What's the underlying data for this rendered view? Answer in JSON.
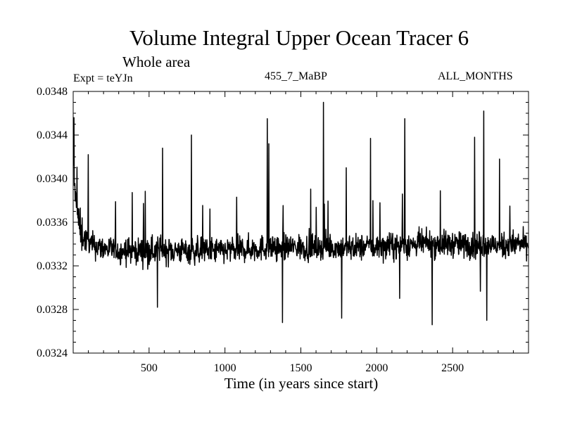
{
  "chart_data": {
    "type": "line",
    "title": "Volume Integral Upper Ocean Tracer 6",
    "subtitle": "Whole area",
    "annotations": {
      "left": "Expt = teYJn",
      "center": "455_7_MaBP",
      "right": "ALL_MONTHS"
    },
    "xlabel": "Time (in years since start)",
    "ylabel": "",
    "xlim": [
      0,
      3000
    ],
    "ylim": [
      0.0324,
      0.0348
    ],
    "x_ticks": [
      500,
      1000,
      1500,
      2000,
      2500
    ],
    "x_tick_labels": [
      "500",
      "1000",
      "1500",
      "2000",
      "2500"
    ],
    "y_ticks": [
      0.0324,
      0.0328,
      0.0332,
      0.0336,
      0.034,
      0.0344,
      0.0348
    ],
    "y_tick_labels": [
      "0.0324",
      "0.0328",
      "0.0332",
      "0.0336",
      "0.0340",
      "0.0344",
      "0.0348"
    ],
    "grid": false,
    "line_color": "#000000",
    "series": [
      {
        "x": [
          1,
          10,
          25,
          50,
          75,
          100,
          150,
          200,
          250,
          300,
          400,
          500,
          600,
          700,
          800,
          900,
          1000,
          1100,
          1200,
          1300,
          1400,
          1500,
          1600,
          1700,
          1800,
          1900,
          2000,
          2100,
          2200,
          2300,
          2400,
          2500,
          2600,
          2700,
          2800,
          2900,
          2990
        ],
        "y": [
          0.0341,
          0.0339,
          0.0337,
          0.0335,
          0.03345,
          0.0334,
          0.03338,
          0.03336,
          0.03335,
          0.03334,
          0.03334,
          0.03334,
          0.03334,
          0.03334,
          0.03334,
          0.03334,
          0.03334,
          0.03335,
          0.03336,
          0.03337,
          0.03337,
          0.03337,
          0.03337,
          0.03337,
          0.03337,
          0.03337,
          0.03337,
          0.03338,
          0.03339,
          0.0334,
          0.0334,
          0.0334,
          0.03339,
          0.03339,
          0.03339,
          0.0334,
          0.0334
        ]
      }
    ],
    "peaks": [
      {
        "x": 5,
        "y": 0.03456
      },
      {
        "x": 100,
        "y": 0.03422
      },
      {
        "x": 590,
        "y": 0.03428
      },
      {
        "x": 780,
        "y": 0.0344
      },
      {
        "x": 1280,
        "y": 0.03455
      },
      {
        "x": 1290,
        "y": 0.03432
      },
      {
        "x": 1650,
        "y": 0.0347
      },
      {
        "x": 1800,
        "y": 0.0341
      },
      {
        "x": 1960,
        "y": 0.03437
      },
      {
        "x": 2185,
        "y": 0.03455
      },
      {
        "x": 2645,
        "y": 0.03438
      },
      {
        "x": 2705,
        "y": 0.03462
      },
      {
        "x": 2810,
        "y": 0.03418
      }
    ],
    "troughs": [
      {
        "x": 555,
        "y": 0.03282
      },
      {
        "x": 1380,
        "y": 0.03268
      },
      {
        "x": 1770,
        "y": 0.03272
      },
      {
        "x": 2365,
        "y": 0.03266
      },
      {
        "x": 2725,
        "y": 0.0327
      }
    ]
  }
}
